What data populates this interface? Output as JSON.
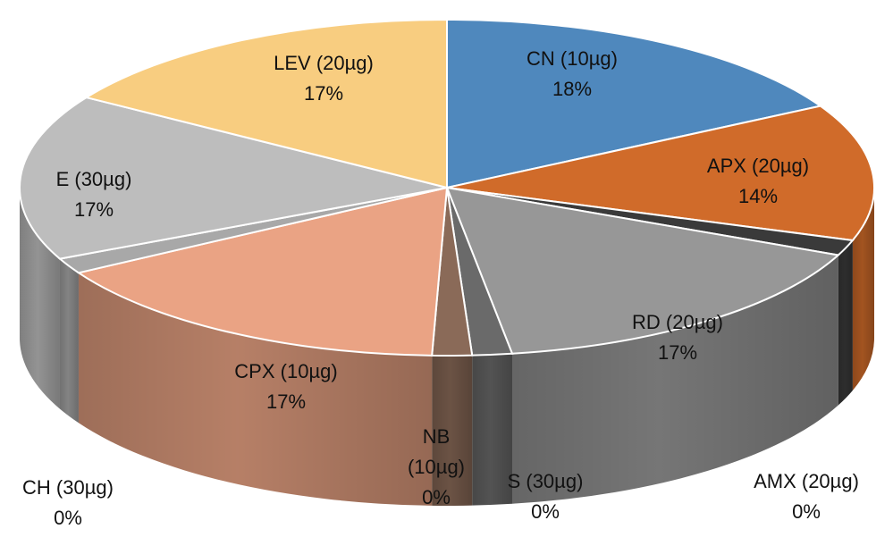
{
  "chart_data": {
    "type": "pie",
    "style": "3d",
    "title": "",
    "slices": [
      {
        "label": "CN (10µg)",
        "value": 18,
        "pct_label": "18%",
        "color": "#4f88bd"
      },
      {
        "label": "APX (20µg)",
        "value": 14,
        "pct_label": "14%",
        "color": "#d06b2a"
      },
      {
        "label": "AMX (20µg)",
        "value": 0,
        "pct_label": "0%",
        "color": "#3a3a3a"
      },
      {
        "label": "RD (20µg)",
        "value": 17,
        "pct_label": "17%",
        "color": "#979797"
      },
      {
        "label": "S (30µg)",
        "value": 0,
        "pct_label": "0%",
        "color": "#6a6a6a"
      },
      {
        "label": "NB (10µg)",
        "value": 0,
        "pct_label": "0%",
        "color": "#8a6a58"
      },
      {
        "label": "CPX (10µg)",
        "value": 17,
        "pct_label": "17%",
        "color": "#eaa384"
      },
      {
        "label": "CH (30µg)",
        "value": 0,
        "pct_label": "0%",
        "color": "#a8a8a8"
      },
      {
        "label": "E (30µg)",
        "value": 17,
        "pct_label": "17%",
        "color": "#bdbdbd"
      },
      {
        "label": "LEV (20µg)",
        "value": 17,
        "pct_label": "17%",
        "color": "#f8cd80"
      }
    ]
  }
}
